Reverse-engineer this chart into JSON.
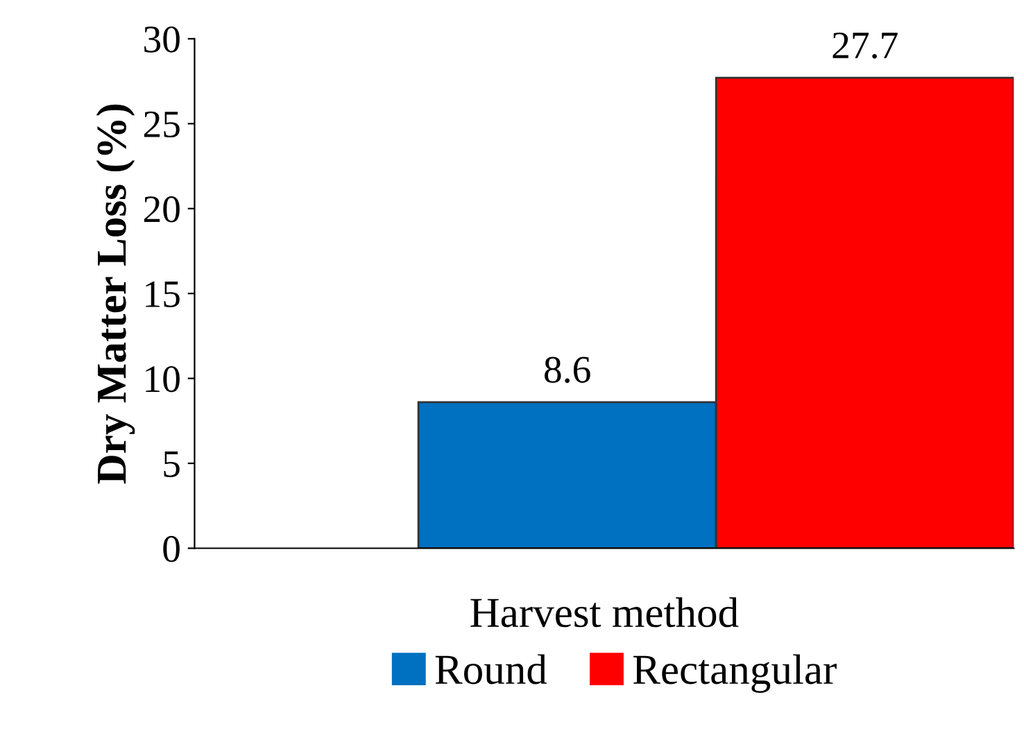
{
  "chart_data": {
    "type": "bar",
    "xlabel": "Harvest method",
    "ylabel": "Dry Matter Loss (%)",
    "categories": [
      null
    ],
    "series": [
      {
        "name": "Round",
        "color": "#0070c0",
        "values": [
          8.6
        ]
      },
      {
        "name": "Rectangular",
        "color": "#ff0000",
        "values": [
          27.7
        ]
      }
    ],
    "ylim": [
      0,
      30
    ],
    "yticks": [
      0,
      5,
      10,
      15,
      20,
      25,
      30
    ],
    "data_labels": true,
    "legend": "bottom",
    "grid": false
  }
}
